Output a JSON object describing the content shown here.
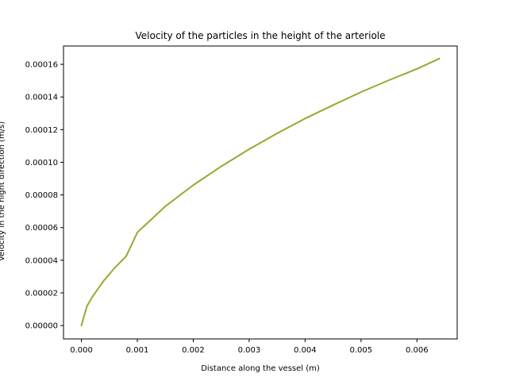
{
  "chart_data": {
    "type": "line",
    "title": "Velocity of the particles in the height of the arteriole",
    "xlabel": "Distance along the vessel (m)",
    "ylabel": "Velocity in the hight direction (m/s)",
    "xlim": [
      -0.00032,
      0.00672
    ],
    "ylim": [
      -8.2e-06,
      0.0001712
    ],
    "xticks": [
      0.0,
      0.001,
      0.002,
      0.003,
      0.004,
      0.005,
      0.006
    ],
    "xtick_labels": [
      "0.000",
      "0.001",
      "0.002",
      "0.003",
      "0.004",
      "0.005",
      "0.006"
    ],
    "yticks": [
      0.0,
      2e-05,
      4e-05,
      6e-05,
      8e-05,
      0.0001,
      0.00012,
      0.00014,
      0.00016
    ],
    "ytick_labels": [
      "0.00000",
      "0.00002",
      "0.00004",
      "0.00006",
      "0.00008",
      "0.00010",
      "0.00012",
      "0.00014",
      "0.00016"
    ],
    "grid": false,
    "series": [
      {
        "color": "#9aa830",
        "x": [
          0.0,
          0.0001,
          0.0002,
          0.0004,
          0.0006,
          0.0008,
          0.001,
          0.0015,
          0.002,
          0.0025,
          0.003,
          0.0035,
          0.004,
          0.0045,
          0.005,
          0.0055,
          0.006,
          0.0064
        ],
        "y": [
          0.0,
          1.19e-05,
          1.78e-05,
          2.75e-05,
          3.55e-05,
          4.24e-05,
          5.7e-05,
          7.3e-05,
          8.6e-05,
          9.75e-05,
          0.000108,
          0.0001177,
          0.0001268,
          0.000135,
          0.000143,
          0.0001503,
          0.0001572,
          0.0001635
        ]
      }
    ]
  }
}
